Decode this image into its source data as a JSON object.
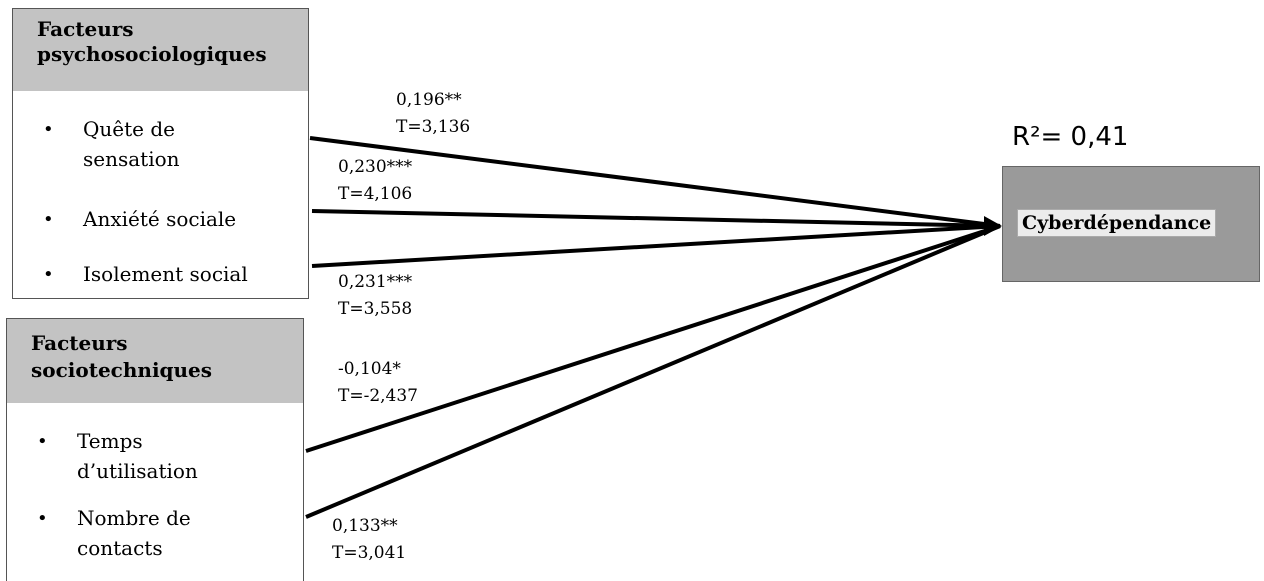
{
  "groups": [
    {
      "title_line1": "Facteurs",
      "title_line2": "psychosociologiques",
      "items": [
        {
          "line1": "Quête de",
          "line2": "sensation"
        },
        {
          "line1": "Anxiété sociale",
          "line2": ""
        },
        {
          "line1": "Isolement social",
          "line2": ""
        }
      ]
    },
    {
      "title_line1": "Facteurs",
      "title_line2": "sociotechniques",
      "items": [
        {
          "line1": "Temps",
          "line2": "d’utilisation"
        },
        {
          "line1": "Nombre de",
          "line2": "contacts"
        }
      ]
    }
  ],
  "paths": [
    {
      "coef": "0,196**",
      "t": "T=3,136"
    },
    {
      "coef": "0,230***",
      "t": "T=4,106"
    },
    {
      "coef": "0,231***",
      "t": "T=3,558"
    },
    {
      "coef": "-0,104*",
      "t": "T=-2,437"
    },
    {
      "coef": "0,133**",
      "t": "T=3,041"
    }
  ],
  "outcome": {
    "label": "Cyberdépendance",
    "r2": "R²= 0,41"
  },
  "bullet": "•",
  "colors": {
    "header": "#c3c3c3",
    "outcome_box": "#9a9a9a",
    "arrow": "#000000"
  }
}
